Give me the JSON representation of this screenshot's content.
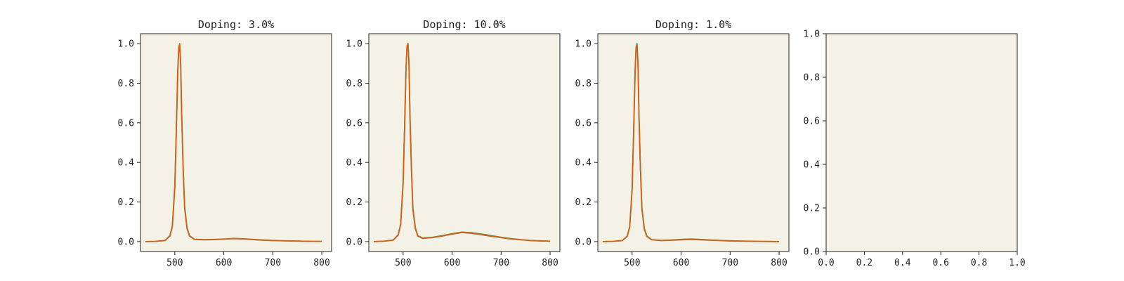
{
  "chart_data": [
    {
      "type": "line",
      "title": "Doping: 3.0%",
      "xlabel": "",
      "ylabel": "",
      "xlim": [
        430,
        820
      ],
      "ylim": [
        -0.05,
        1.05
      ],
      "xticks": [
        500,
        600,
        700,
        800
      ],
      "yticks": [
        0.0,
        0.2,
        0.4,
        0.6,
        0.8,
        1.0
      ],
      "xtick_labels": [
        "500",
        "600",
        "700",
        "800"
      ],
      "ytick_labels": [
        "0.0",
        "0.2",
        "0.4",
        "0.6",
        "0.8",
        "1.0"
      ],
      "grid": false,
      "background": "#f4f2e7",
      "series": [
        {
          "color": "#2a9d8f",
          "x": [
            440,
            460,
            480,
            490,
            495,
            500,
            503,
            506,
            508,
            510,
            512,
            514,
            517,
            520,
            525,
            530,
            540,
            560,
            580,
            600,
            620,
            640,
            660,
            680,
            700,
            720,
            740,
            760,
            780,
            800
          ],
          "y": [
            0.0,
            0.001,
            0.006,
            0.03,
            0.08,
            0.28,
            0.55,
            0.85,
            0.97,
            0.99,
            0.9,
            0.65,
            0.38,
            0.18,
            0.07,
            0.03,
            0.012,
            0.01,
            0.011,
            0.013,
            0.016,
            0.014,
            0.011,
            0.008,
            0.006,
            0.004,
            0.003,
            0.002,
            0.001,
            0.001
          ]
        },
        {
          "color": "#d95f0e",
          "x": [
            440,
            460,
            480,
            490,
            495,
            500,
            503,
            506,
            508,
            510,
            512,
            514,
            517,
            520,
            525,
            530,
            540,
            560,
            580,
            600,
            620,
            640,
            660,
            680,
            700,
            720,
            740,
            760,
            780,
            800
          ],
          "y": [
            0.0,
            0.001,
            0.005,
            0.028,
            0.075,
            0.27,
            0.55,
            0.86,
            0.98,
            1.0,
            0.9,
            0.64,
            0.37,
            0.17,
            0.065,
            0.028,
            0.011,
            0.009,
            0.01,
            0.012,
            0.015,
            0.013,
            0.01,
            0.007,
            0.005,
            0.004,
            0.003,
            0.002,
            0.001,
            0.001
          ]
        }
      ]
    },
    {
      "type": "line",
      "title": "Doping: 10.0%",
      "xlabel": "",
      "ylabel": "",
      "xlim": [
        430,
        820
      ],
      "ylim": [
        -0.05,
        1.05
      ],
      "xticks": [
        500,
        600,
        700,
        800
      ],
      "yticks": [
        0.0,
        0.2,
        0.4,
        0.6,
        0.8,
        1.0
      ],
      "xtick_labels": [
        "500",
        "600",
        "700",
        "800"
      ],
      "ytick_labels": [
        "0.0",
        "0.2",
        "0.4",
        "0.6",
        "0.8",
        "1.0"
      ],
      "grid": false,
      "background": "#f4f2e7",
      "series": [
        {
          "color": "#2a9d8f",
          "x": [
            440,
            460,
            480,
            490,
            495,
            500,
            503,
            506,
            508,
            510,
            512,
            514,
            517,
            520,
            525,
            530,
            540,
            560,
            580,
            600,
            620,
            640,
            660,
            680,
            700,
            720,
            740,
            760,
            780,
            800
          ],
          "y": [
            0.0,
            0.002,
            0.008,
            0.035,
            0.09,
            0.3,
            0.58,
            0.88,
            0.98,
            1.0,
            0.9,
            0.64,
            0.37,
            0.17,
            0.07,
            0.03,
            0.018,
            0.022,
            0.03,
            0.04,
            0.048,
            0.045,
            0.038,
            0.03,
            0.022,
            0.015,
            0.01,
            0.006,
            0.004,
            0.002
          ]
        },
        {
          "color": "#d95f0e",
          "x": [
            440,
            460,
            480,
            490,
            495,
            500,
            503,
            506,
            508,
            510,
            512,
            514,
            517,
            520,
            525,
            530,
            540,
            560,
            580,
            600,
            620,
            640,
            660,
            680,
            700,
            720,
            740,
            760,
            780,
            800
          ],
          "y": [
            0.0,
            0.002,
            0.007,
            0.033,
            0.085,
            0.29,
            0.57,
            0.88,
            0.99,
            1.0,
            0.89,
            0.63,
            0.36,
            0.16,
            0.065,
            0.028,
            0.016,
            0.02,
            0.028,
            0.038,
            0.046,
            0.042,
            0.035,
            0.027,
            0.02,
            0.013,
            0.009,
            0.005,
            0.003,
            0.002
          ]
        }
      ]
    },
    {
      "type": "line",
      "title": "Doping: 1.0%",
      "xlabel": "",
      "ylabel": "",
      "xlim": [
        430,
        820
      ],
      "ylim": [
        -0.05,
        1.05
      ],
      "xticks": [
        500,
        600,
        700,
        800
      ],
      "yticks": [
        0.0,
        0.2,
        0.4,
        0.6,
        0.8,
        1.0
      ],
      "xtick_labels": [
        "500",
        "600",
        "700",
        "800"
      ],
      "ytick_labels": [
        "0.0",
        "0.2",
        "0.4",
        "0.6",
        "0.8",
        "1.0"
      ],
      "grid": false,
      "background": "#f4f2e7",
      "series": [
        {
          "color": "#2a9d8f",
          "x": [
            440,
            460,
            480,
            490,
            495,
            500,
            503,
            506,
            508,
            510,
            512,
            514,
            517,
            520,
            525,
            530,
            540,
            560,
            580,
            600,
            620,
            640,
            660,
            680,
            700,
            720,
            740,
            760,
            780,
            800
          ],
          "y": [
            0.0,
            0.001,
            0.005,
            0.028,
            0.075,
            0.27,
            0.55,
            0.86,
            0.98,
            1.0,
            0.9,
            0.64,
            0.37,
            0.17,
            0.065,
            0.028,
            0.01,
            0.006,
            0.008,
            0.011,
            0.013,
            0.011,
            0.008,
            0.006,
            0.004,
            0.003,
            0.002,
            0.001,
            0.001,
            0.0
          ]
        },
        {
          "color": "#d95f0e",
          "x": [
            440,
            460,
            480,
            490,
            495,
            500,
            503,
            506,
            508,
            510,
            512,
            514,
            517,
            520,
            525,
            530,
            540,
            560,
            580,
            600,
            620,
            640,
            660,
            680,
            700,
            720,
            740,
            760,
            780,
            800
          ],
          "y": [
            0.0,
            0.001,
            0.005,
            0.027,
            0.072,
            0.26,
            0.54,
            0.85,
            0.97,
            0.99,
            0.89,
            0.63,
            0.36,
            0.16,
            0.06,
            0.026,
            0.009,
            0.005,
            0.007,
            0.009,
            0.011,
            0.009,
            0.007,
            0.005,
            0.003,
            0.002,
            0.002,
            0.001,
            0.0,
            0.0
          ]
        }
      ]
    },
    {
      "type": "line",
      "title": "",
      "xlabel": "",
      "ylabel": "",
      "xlim": [
        0.0,
        1.0
      ],
      "ylim": [
        0.0,
        1.0
      ],
      "xticks": [
        0.0,
        0.2,
        0.4,
        0.6,
        0.8,
        1.0
      ],
      "yticks": [
        0.0,
        0.2,
        0.4,
        0.6,
        0.8,
        1.0
      ],
      "xtick_labels": [
        "0.0",
        "0.2",
        "0.4",
        "0.6",
        "0.8",
        "1.0"
      ],
      "ytick_labels": [
        "0.0",
        "0.2",
        "0.4",
        "0.6",
        "0.8",
        "1.0"
      ],
      "grid": false,
      "background": "#f4f2e7",
      "series": []
    }
  ]
}
